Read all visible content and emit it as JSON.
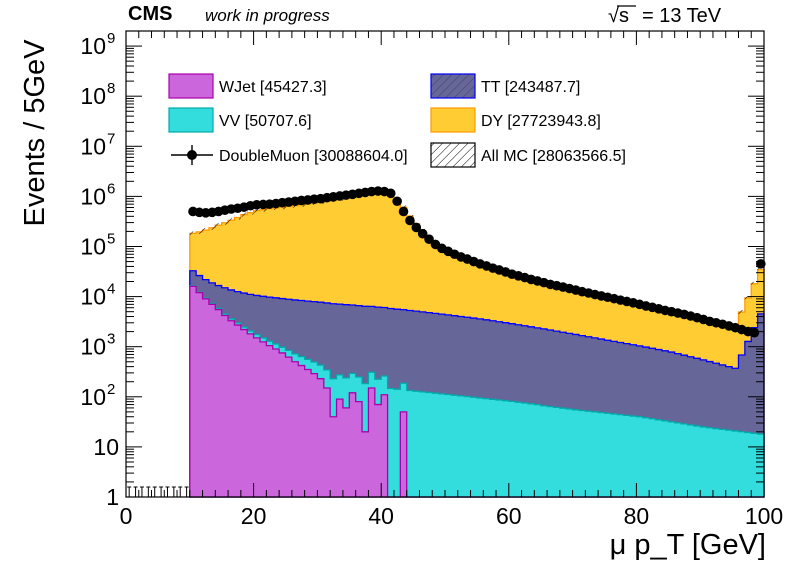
{
  "header": {
    "experiment": "CMS",
    "status": "work in progress",
    "energy_prefix": "√s",
    "energy_suffix": "= 13 TeV"
  },
  "legend": [
    {
      "key": "wjet",
      "label": "WJet [45427.3]",
      "fill": "#cc66dd",
      "edge": "#aa00aa"
    },
    {
      "key": "tt",
      "label": "TT [243487.7]",
      "fill": "#666699",
      "edge": "#0000ff"
    },
    {
      "key": "vv",
      "label": "VV [50707.6]",
      "fill": "#33dddd",
      "edge": "#00aaaa"
    },
    {
      "key": "dy",
      "label": "DY [27723943.8]",
      "fill": "#ffcc33",
      "edge": "#ff9900"
    },
    {
      "key": "data",
      "label": "DoubleMuon [30088604.0]",
      "fill": "#000000",
      "edge": "#000000"
    },
    {
      "key": "allmc",
      "label": "All MC [28063566.5]",
      "fill": "#ffffff",
      "edge": "#000000"
    }
  ],
  "chart_data": {
    "type": "bar",
    "stacked": true,
    "xlabel": "μ p_T [GeV]",
    "ylabel": "Events / 5GeV",
    "x_scale": "linear",
    "y_scale": "log",
    "xlim": [
      0,
      100
    ],
    "ylim": [
      1,
      2000000000
    ],
    "bin_width": 1,
    "x_ticks": [
      0,
      20,
      40,
      60,
      80,
      100
    ],
    "y_tick_labels": [
      "1",
      "10",
      "10^2",
      "10^3",
      "10^4",
      "10^5",
      "10^6",
      "10^7",
      "10^8",
      "10^9"
    ],
    "grid": false,
    "legend_position": "top",
    "series": [
      {
        "name": "WJet",
        "key": "wjet",
        "color": "#cc66dd",
        "edge": "#aa00aa",
        "points": [
          [
            10,
            16000
          ],
          [
            11,
            12000
          ],
          [
            12,
            9000
          ],
          [
            13,
            7000
          ],
          [
            14,
            5500
          ],
          [
            15,
            4200
          ],
          [
            16,
            3300
          ],
          [
            17,
            2700
          ],
          [
            18,
            2200
          ],
          [
            19,
            1800
          ],
          [
            20,
            1500
          ],
          [
            21,
            1250
          ],
          [
            22,
            1050
          ],
          [
            23,
            900
          ],
          [
            24,
            750
          ],
          [
            25,
            620
          ],
          [
            26,
            500
          ],
          [
            27,
            420
          ],
          [
            28,
            350
          ],
          [
            29,
            290
          ],
          [
            30,
            230
          ],
          [
            31,
            150
          ],
          [
            32,
            40
          ],
          [
            33,
            90
          ],
          [
            34,
            60
          ],
          [
            35,
            120
          ],
          [
            36,
            80
          ],
          [
            37,
            20
          ],
          [
            38,
            150
          ],
          [
            39,
            70
          ],
          [
            40,
            110
          ],
          [
            41,
            1
          ],
          [
            42,
            1
          ],
          [
            43,
            50
          ],
          [
            44,
            1
          ],
          [
            45,
            1
          ],
          [
            46,
            1
          ],
          [
            47,
            1
          ],
          [
            48,
            1
          ],
          [
            49,
            1
          ],
          [
            50,
            1
          ],
          [
            51,
            1
          ],
          [
            52,
            1
          ],
          [
            53,
            1
          ],
          [
            54,
            1
          ],
          [
            55,
            1
          ],
          [
            56,
            1
          ],
          [
            57,
            1
          ],
          [
            58,
            1
          ],
          [
            59,
            1
          ],
          [
            60,
            1
          ],
          [
            61,
            1
          ],
          [
            62,
            1
          ],
          [
            63,
            1
          ],
          [
            64,
            1
          ]
        ]
      },
      {
        "name": "VV",
        "key": "vv",
        "color": "#33dddd",
        "edge": "#00aaaa",
        "points": [
          [
            10,
            300
          ],
          [
            14,
            300
          ],
          [
            20,
            250
          ],
          [
            30,
            200
          ],
          [
            40,
            150
          ],
          [
            50,
            110
          ],
          [
            60,
            80
          ],
          [
            70,
            55
          ],
          [
            80,
            40
          ],
          [
            90,
            25
          ],
          [
            99,
            18
          ]
        ]
      },
      {
        "name": "TT",
        "key": "tt",
        "color": "#666699",
        "edge": "#0000ff",
        "points": [
          [
            10,
            16500
          ],
          [
            11,
            14000
          ],
          [
            12,
            12500
          ],
          [
            13,
            11500
          ],
          [
            14,
            10800
          ],
          [
            15,
            10500
          ],
          [
            16,
            10000
          ],
          [
            17,
            9600
          ],
          [
            18,
            9300
          ],
          [
            19,
            9000
          ],
          [
            20,
            8800
          ],
          [
            25,
            8000
          ],
          [
            30,
            7300
          ],
          [
            35,
            6500
          ],
          [
            40,
            5800
          ],
          [
            45,
            5000
          ],
          [
            50,
            4200
          ],
          [
            55,
            3500
          ],
          [
            60,
            2800
          ],
          [
            65,
            2200
          ],
          [
            70,
            1700
          ],
          [
            75,
            1300
          ],
          [
            80,
            1000
          ],
          [
            85,
            750
          ],
          [
            90,
            520
          ],
          [
            95,
            350
          ],
          [
            99,
            4500
          ]
        ]
      },
      {
        "name": "DY",
        "key": "dy",
        "color": "#ffcc33",
        "edge": "#ff9900",
        "points": [
          [
            10,
            150000
          ],
          [
            12,
            190000
          ],
          [
            14,
            250000
          ],
          [
            16,
            320000
          ],
          [
            18,
            420000
          ],
          [
            20,
            510000
          ],
          [
            22,
            560000
          ],
          [
            25,
            620000
          ],
          [
            28,
            700000
          ],
          [
            30,
            760000
          ],
          [
            33,
            880000
          ],
          [
            36,
            1050000
          ],
          [
            38,
            1150000
          ],
          [
            40,
            1250000
          ],
          [
            41,
            1100000
          ],
          [
            42,
            850000
          ],
          [
            43,
            600000
          ],
          [
            44,
            400000
          ],
          [
            45,
            280000
          ],
          [
            46,
            200000
          ],
          [
            47,
            150000
          ],
          [
            48,
            110000
          ],
          [
            50,
            80000
          ],
          [
            52,
            60000
          ],
          [
            55,
            45000
          ],
          [
            60,
            28000
          ],
          [
            65,
            18000
          ],
          [
            70,
            12000
          ],
          [
            75,
            8500
          ],
          [
            80,
            6000
          ],
          [
            85,
            4200
          ],
          [
            90,
            3000
          ],
          [
            95,
            2200
          ],
          [
            99,
            30000
          ]
        ]
      },
      {
        "name": "DoubleMuon",
        "key": "data",
        "color": "#000000",
        "marker": "circle",
        "points": [
          [
            10.5,
            500000
          ],
          [
            11.5,
            480000
          ],
          [
            12.5,
            470000
          ],
          [
            13.5,
            480000
          ],
          [
            14.5,
            500000
          ],
          [
            15.5,
            530000
          ],
          [
            16.5,
            560000
          ],
          [
            17.5,
            580000
          ],
          [
            18.5,
            610000
          ],
          [
            19.5,
            650000
          ],
          [
            20.5,
            680000
          ],
          [
            21.5,
            690000
          ],
          [
            22.5,
            700000
          ],
          [
            23.5,
            720000
          ],
          [
            24.5,
            750000
          ],
          [
            25.5,
            770000
          ],
          [
            26.5,
            800000
          ],
          [
            27.5,
            830000
          ],
          [
            28.5,
            850000
          ],
          [
            29.5,
            880000
          ],
          [
            30.5,
            900000
          ],
          [
            31.5,
            940000
          ],
          [
            32.5,
            980000
          ],
          [
            33.5,
            1020000
          ],
          [
            34.5,
            1060000
          ],
          [
            35.5,
            1100000
          ],
          [
            36.5,
            1150000
          ],
          [
            37.5,
            1200000
          ],
          [
            38.5,
            1250000
          ],
          [
            39.5,
            1280000
          ],
          [
            40.5,
            1250000
          ],
          [
            41.5,
            1150000
          ],
          [
            42.5,
            800000
          ],
          [
            43.5,
            500000
          ],
          [
            44.5,
            330000
          ],
          [
            45.5,
            240000
          ],
          [
            46.5,
            180000
          ],
          [
            47.5,
            140000
          ],
          [
            48.5,
            110000
          ],
          [
            49.5,
            92000
          ],
          [
            50.5,
            80000
          ],
          [
            51.5,
            70000
          ],
          [
            52.5,
            62000
          ],
          [
            53.5,
            56000
          ],
          [
            54.5,
            50000
          ],
          [
            55.5,
            45000
          ],
          [
            56.5,
            41000
          ],
          [
            57.5,
            37000
          ],
          [
            58.5,
            34000
          ],
          [
            59.5,
            31000
          ],
          [
            60.5,
            28000
          ],
          [
            61.5,
            26000
          ],
          [
            62.5,
            24000
          ],
          [
            63.5,
            22000
          ],
          [
            64.5,
            20500
          ],
          [
            65.5,
            19000
          ],
          [
            66.5,
            17500
          ],
          [
            67.5,
            16500
          ],
          [
            68.5,
            15500
          ],
          [
            69.5,
            14500
          ],
          [
            70.5,
            13500
          ],
          [
            71.5,
            12500
          ],
          [
            72.5,
            11800
          ],
          [
            73.5,
            11000
          ],
          [
            74.5,
            10300
          ],
          [
            75.5,
            9700
          ],
          [
            76.5,
            9100
          ],
          [
            77.5,
            8500
          ],
          [
            78.5,
            8000
          ],
          [
            79.5,
            7500
          ],
          [
            80.5,
            7000
          ],
          [
            81.5,
            6500
          ],
          [
            82.5,
            6100
          ],
          [
            83.5,
            5700
          ],
          [
            84.5,
            5300
          ],
          [
            85.5,
            5000
          ],
          [
            86.5,
            4700
          ],
          [
            87.5,
            4400
          ],
          [
            88.5,
            4100
          ],
          [
            89.5,
            3800
          ],
          [
            90.5,
            3500
          ],
          [
            91.5,
            3200
          ],
          [
            92.5,
            3000
          ],
          [
            93.5,
            2800
          ],
          [
            94.5,
            2600
          ],
          [
            95.5,
            2400
          ],
          [
            96.5,
            2200
          ],
          [
            97.5,
            2000
          ],
          [
            98.5,
            1900
          ],
          [
            99.5,
            45000
          ]
        ]
      }
    ]
  }
}
